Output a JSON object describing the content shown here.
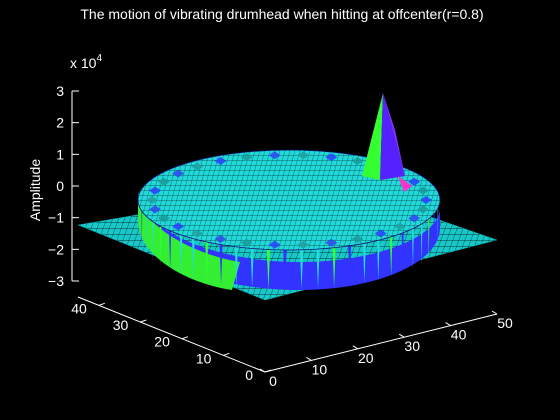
{
  "chart_data": {
    "type": "surface3d",
    "title": "The motion of vibrating drumhead when hitting at offcenter(r=0.8)",
    "zlabel": "Amplitude",
    "z_exponent_label": "x 10",
    "z_exponent_power": "4",
    "x_ticks": [
      "0",
      "10",
      "20",
      "30",
      "40",
      "50"
    ],
    "y_ticks": [
      "0",
      "10",
      "20",
      "30",
      "40"
    ],
    "z_ticks": [
      "3",
      "2",
      "1",
      "0",
      "−1",
      "−2",
      "−3"
    ],
    "xlim": [
      0,
      50
    ],
    "ylim": [
      0,
      45
    ],
    "zlim": [
      -3,
      3
    ],
    "drum": {
      "center_x": 25,
      "center_y": 22,
      "radius": 18,
      "rim_height": 0.25,
      "floor_level": -1.1
    },
    "peak": {
      "x": 40,
      "y": 28,
      "amplitude": 2.8
    },
    "grid": "off",
    "colors": {
      "background": "#000000",
      "mesh": "#00ffff",
      "floor": "#20e0e0",
      "wall_green": "#33ff33",
      "wall_blue": "#3333ff",
      "wall_cyan": "#22dddd",
      "peak_purple": "#9933ff",
      "peak_magenta": "#ff33cc",
      "text": "#ffffff"
    }
  }
}
